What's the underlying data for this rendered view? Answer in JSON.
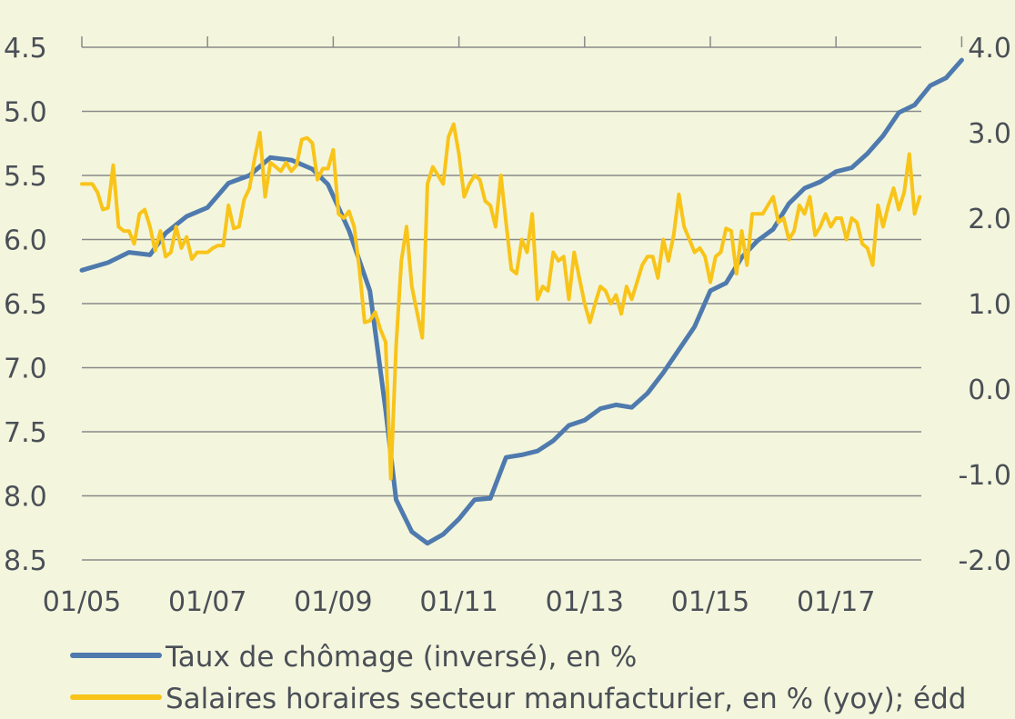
{
  "chart_data": {
    "type": "line",
    "x_tick_labels": [
      "01/05",
      "01/07",
      "01/09",
      "01/11",
      "01/13",
      "01/15",
      "01/17"
    ],
    "left_axis": {
      "ticks": [
        "4.5",
        "5.0",
        "5.5",
        "6.0",
        "6.5",
        "7.0",
        "7.5",
        "8.0",
        "8.5"
      ],
      "ylim": [
        8.5,
        4.5
      ],
      "inverted": true
    },
    "right_axis": {
      "ticks": [
        "4.0",
        "3.0",
        "2.0",
        "1.0",
        "0.0",
        "-1.0",
        "-2.0"
      ],
      "ylim": [
        -2.0,
        4.0
      ]
    },
    "grid": true,
    "legend_position": "bottom",
    "series": [
      {
        "name": "Taux de chômage (inversé), en %",
        "axis": "left",
        "color": "#4f7aae",
        "points": [
          [
            "2005-01",
            6.24
          ],
          [
            "2005-06",
            6.18
          ],
          [
            "2005-10",
            6.1
          ],
          [
            "2006-02",
            6.12
          ],
          [
            "2006-05",
            5.95
          ],
          [
            "2006-09",
            5.82
          ],
          [
            "2007-01",
            5.75
          ],
          [
            "2007-05",
            5.56
          ],
          [
            "2007-09",
            5.5
          ],
          [
            "2008-01",
            5.36
          ],
          [
            "2008-05",
            5.38
          ],
          [
            "2008-09",
            5.45
          ],
          [
            "2008-12",
            5.57
          ],
          [
            "2009-04",
            5.93
          ],
          [
            "2009-08",
            6.4
          ],
          [
            "2009-11",
            7.33
          ],
          [
            "2010-01",
            8.03
          ],
          [
            "2010-04",
            8.28
          ],
          [
            "2010-07",
            8.37
          ],
          [
            "2010-10",
            8.3
          ],
          [
            "2011-01",
            8.18
          ],
          [
            "2011-04",
            8.03
          ],
          [
            "2011-07",
            8.02
          ],
          [
            "2011-10",
            7.7
          ],
          [
            "2012-01",
            7.68
          ],
          [
            "2012-04",
            7.65
          ],
          [
            "2012-07",
            7.57
          ],
          [
            "2012-10",
            7.45
          ],
          [
            "2013-01",
            7.41
          ],
          [
            "2013-04",
            7.32
          ],
          [
            "2013-07",
            7.29
          ],
          [
            "2013-10",
            7.31
          ],
          [
            "2014-01",
            7.2
          ],
          [
            "2014-04",
            7.04
          ],
          [
            "2014-07",
            6.86
          ],
          [
            "2014-10",
            6.68
          ],
          [
            "2015-01",
            6.4
          ],
          [
            "2015-04",
            6.34
          ],
          [
            "2015-07",
            6.14
          ],
          [
            "2015-10",
            6.01
          ],
          [
            "2016-01",
            5.92
          ],
          [
            "2016-04",
            5.72
          ],
          [
            "2016-07",
            5.6
          ],
          [
            "2016-10",
            5.55
          ],
          [
            "2017-01",
            5.47
          ],
          [
            "2017-04",
            5.44
          ],
          [
            "2017-07",
            5.33
          ],
          [
            "2017-10",
            5.19
          ],
          [
            "2018-01",
            5.01
          ],
          [
            "2018-04",
            4.95
          ],
          [
            "2018-07",
            4.8
          ],
          [
            "2018-10",
            4.74
          ],
          [
            "2019-01",
            4.6
          ]
        ]
      },
      {
        "name": "Salaires horaires secteur manufacturier, en % (yoy); édd",
        "axis": "right",
        "color": "#f9c41a",
        "points": [
          [
            "2005-01",
            2.4
          ],
          [
            "2005-02",
            2.4
          ],
          [
            "2005-03",
            2.4
          ],
          [
            "2005-04",
            2.3
          ],
          [
            "2005-05",
            2.1
          ],
          [
            "2005-06",
            2.12
          ],
          [
            "2005-07",
            2.62
          ],
          [
            "2005-08",
            1.9
          ],
          [
            "2005-09",
            1.85
          ],
          [
            "2005-10",
            1.85
          ],
          [
            "2005-11",
            1.7
          ],
          [
            "2005-12",
            2.05
          ],
          [
            "2006-01",
            2.1
          ],
          [
            "2006-02",
            1.9
          ],
          [
            "2006-03",
            1.62
          ],
          [
            "2006-04",
            1.85
          ],
          [
            "2006-05",
            1.55
          ],
          [
            "2006-06",
            1.6
          ],
          [
            "2006-07",
            1.9
          ],
          [
            "2006-08",
            1.65
          ],
          [
            "2006-09",
            1.78
          ],
          [
            "2006-10",
            1.52
          ],
          [
            "2006-11",
            1.6
          ],
          [
            "2006-12",
            1.6
          ],
          [
            "2007-01",
            1.6
          ],
          [
            "2007-02",
            1.65
          ],
          [
            "2007-03",
            1.68
          ],
          [
            "2007-04",
            1.68
          ],
          [
            "2007-05",
            2.15
          ],
          [
            "2007-06",
            1.88
          ],
          [
            "2007-07",
            1.9
          ],
          [
            "2007-08",
            2.22
          ],
          [
            "2007-09",
            2.35
          ],
          [
            "2007-10",
            2.7
          ],
          [
            "2007-11",
            3.0
          ],
          [
            "2007-12",
            2.25
          ],
          [
            "2008-01",
            2.65
          ],
          [
            "2008-02",
            2.6
          ],
          [
            "2008-03",
            2.55
          ],
          [
            "2008-04",
            2.65
          ],
          [
            "2008-05",
            2.55
          ],
          [
            "2008-06",
            2.62
          ],
          [
            "2008-07",
            2.92
          ],
          [
            "2008-08",
            2.94
          ],
          [
            "2008-09",
            2.88
          ],
          [
            "2008-10",
            2.45
          ],
          [
            "2008-11",
            2.58
          ],
          [
            "2008-12",
            2.58
          ],
          [
            "2009-01",
            2.8
          ],
          [
            "2009-02",
            2.05
          ],
          [
            "2009-03",
            2.0
          ],
          [
            "2009-04",
            2.08
          ],
          [
            "2009-05",
            1.9
          ],
          [
            "2009-06",
            1.4
          ],
          [
            "2009-07",
            0.78
          ],
          [
            "2009-08",
            0.8
          ],
          [
            "2009-09",
            0.9
          ],
          [
            "2009-10",
            0.7
          ],
          [
            "2009-11",
            0.55
          ],
          [
            "2009-12",
            -1.05
          ],
          [
            "2010-01",
            0.5
          ],
          [
            "2010-02",
            1.5
          ],
          [
            "2010-03",
            1.9
          ],
          [
            "2010-04",
            1.2
          ],
          [
            "2010-05",
            0.9
          ],
          [
            "2010-06",
            0.6
          ],
          [
            "2010-07",
            2.4
          ],
          [
            "2010-08",
            2.6
          ],
          [
            "2010-09",
            2.5
          ],
          [
            "2010-10",
            2.4
          ],
          [
            "2010-11",
            2.95
          ],
          [
            "2010-12",
            3.1
          ],
          [
            "2011-01",
            2.75
          ],
          [
            "2011-02",
            2.25
          ],
          [
            "2011-03",
            2.4
          ],
          [
            "2011-04",
            2.5
          ],
          [
            "2011-05",
            2.45
          ],
          [
            "2011-06",
            2.2
          ],
          [
            "2011-07",
            2.15
          ],
          [
            "2011-08",
            1.9
          ],
          [
            "2011-09",
            2.5
          ],
          [
            "2011-10",
            1.95
          ],
          [
            "2011-11",
            1.4
          ],
          [
            "2011-12",
            1.35
          ],
          [
            "2012-01",
            1.75
          ],
          [
            "2012-02",
            1.6
          ],
          [
            "2012-03",
            2.05
          ],
          [
            "2012-04",
            1.05
          ],
          [
            "2012-05",
            1.2
          ],
          [
            "2012-06",
            1.15
          ],
          [
            "2012-07",
            1.6
          ],
          [
            "2012-08",
            1.5
          ],
          [
            "2012-09",
            1.55
          ],
          [
            "2012-10",
            1.05
          ],
          [
            "2012-11",
            1.6
          ],
          [
            "2012-12",
            1.3
          ],
          [
            "2013-01",
            1.0
          ],
          [
            "2013-02",
            0.78
          ],
          [
            "2013-03",
            1.0
          ],
          [
            "2013-04",
            1.2
          ],
          [
            "2013-05",
            1.15
          ],
          [
            "2013-06",
            1.0
          ],
          [
            "2013-07",
            1.1
          ],
          [
            "2013-08",
            0.88
          ],
          [
            "2013-09",
            1.2
          ],
          [
            "2013-10",
            1.05
          ],
          [
            "2013-11",
            1.25
          ],
          [
            "2013-12",
            1.45
          ],
          [
            "2014-01",
            1.55
          ],
          [
            "2014-02",
            1.55
          ],
          [
            "2014-03",
            1.3
          ],
          [
            "2014-04",
            1.75
          ],
          [
            "2014-05",
            1.5
          ],
          [
            "2014-06",
            1.8
          ],
          [
            "2014-07",
            2.28
          ],
          [
            "2014-08",
            1.9
          ],
          [
            "2014-09",
            1.75
          ],
          [
            "2014-10",
            1.6
          ],
          [
            "2014-11",
            1.65
          ],
          [
            "2014-12",
            1.55
          ],
          [
            "2015-01",
            1.25
          ],
          [
            "2015-02",
            1.55
          ],
          [
            "2015-03",
            1.6
          ],
          [
            "2015-04",
            1.88
          ],
          [
            "2015-05",
            1.85
          ],
          [
            "2015-06",
            1.35
          ],
          [
            "2015-07",
            1.85
          ],
          [
            "2015-08",
            1.45
          ],
          [
            "2015-09",
            2.05
          ],
          [
            "2015-10",
            2.05
          ],
          [
            "2015-11",
            2.05
          ],
          [
            "2015-12",
            2.15
          ],
          [
            "2016-01",
            2.25
          ],
          [
            "2016-02",
            1.95
          ],
          [
            "2016-03",
            2.0
          ],
          [
            "2016-04",
            1.75
          ],
          [
            "2016-05",
            1.85
          ],
          [
            "2016-06",
            2.15
          ],
          [
            "2016-07",
            2.05
          ],
          [
            "2016-08",
            2.25
          ],
          [
            "2016-09",
            1.8
          ],
          [
            "2016-10",
            1.9
          ],
          [
            "2016-11",
            2.05
          ],
          [
            "2016-12",
            1.9
          ],
          [
            "2017-01",
            2.0
          ],
          [
            "2017-02",
            2.0
          ],
          [
            "2017-03",
            1.75
          ],
          [
            "2017-04",
            2.0
          ],
          [
            "2017-05",
            1.95
          ],
          [
            "2017-06",
            1.7
          ],
          [
            "2017-07",
            1.65
          ],
          [
            "2017-08",
            1.45
          ],
          [
            "2017-09",
            2.15
          ],
          [
            "2017-10",
            1.9
          ],
          [
            "2017-11",
            2.15
          ],
          [
            "2017-12",
            2.35
          ],
          [
            "2018-01",
            2.1
          ],
          [
            "2018-02",
            2.3
          ],
          [
            "2018-03",
            2.75
          ],
          [
            "2018-04",
            2.05
          ],
          [
            "2018-05",
            2.25
          ]
        ]
      }
    ]
  }
}
